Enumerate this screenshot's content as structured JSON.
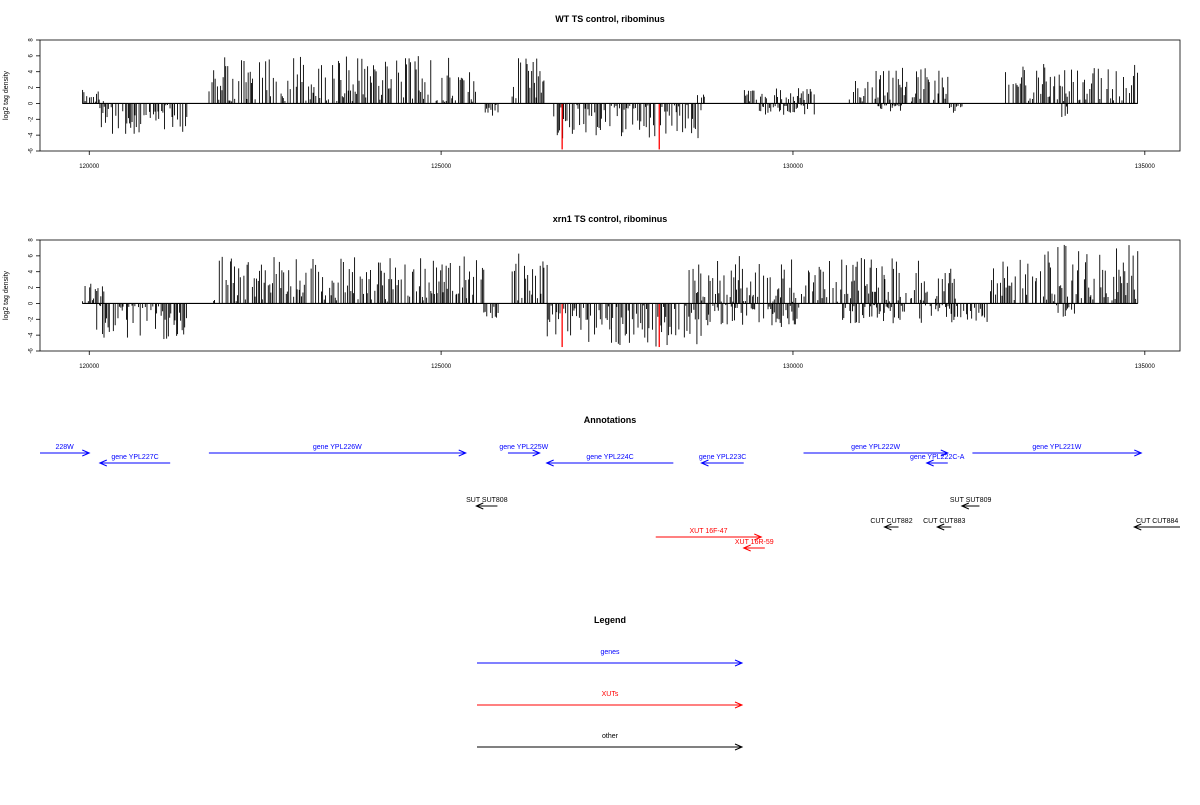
{
  "chart_data": [
    {
      "type": "bar",
      "title": "WT TS control, ribominus",
      "ylabel": "log2 tag density",
      "xlabel": "",
      "xlim": [
        119300,
        135500
      ],
      "ylim": [
        -6,
        8
      ],
      "yticks": [
        -6,
        -4,
        -2,
        0,
        2,
        4,
        6,
        8
      ],
      "xticks": [
        120000,
        125000,
        130000,
        135000
      ],
      "grid": false,
      "seed": 17,
      "positive_regions": [
        {
          "start": 119900,
          "end": 120200,
          "max": 2.2
        },
        {
          "start": 121700,
          "end": 125500,
          "max": 6.0
        },
        {
          "start": 126000,
          "end": 126500,
          "max": 5.8
        },
        {
          "start": 128600,
          "end": 128800,
          "max": 1.2
        },
        {
          "start": 129300,
          "end": 130300,
          "max": 2.0
        },
        {
          "start": 130800,
          "end": 132200,
          "max": 4.5
        },
        {
          "start": 133000,
          "end": 134900,
          "max": 5.0
        }
      ],
      "negative_regions": [
        {
          "start": 120150,
          "end": 121400,
          "max": 4.0
        },
        {
          "start": 125600,
          "end": 125800,
          "max": 2.0
        },
        {
          "start": 126600,
          "end": 128700,
          "max": 4.5
        },
        {
          "start": 129500,
          "end": 130300,
          "max": 1.5
        },
        {
          "start": 131200,
          "end": 131600,
          "max": 1.0
        },
        {
          "start": 132200,
          "end": 132400,
          "max": 1.2
        },
        {
          "start": 133800,
          "end": 133900,
          "max": 2.0
        }
      ],
      "highlight_bars": [
        {
          "x": 126720,
          "y": -5.8,
          "color": "#ff0000"
        },
        {
          "x": 128100,
          "y": -5.8,
          "color": "#ff0000"
        }
      ],
      "baseline": {
        "start": 119900,
        "end": 134900
      }
    },
    {
      "type": "bar",
      "title": "xrn1 TS control, ribominus",
      "ylabel": "log2 tag density",
      "xlabel": "",
      "xlim": [
        119300,
        135500
      ],
      "ylim": [
        -6,
        8
      ],
      "yticks": [
        -6,
        -4,
        -2,
        0,
        2,
        4,
        6,
        8
      ],
      "xticks": [
        120000,
        125000,
        130000,
        135000
      ],
      "grid": false,
      "seed": 43,
      "positive_regions": [
        {
          "start": 119900,
          "end": 120200,
          "max": 2.6
        },
        {
          "start": 121700,
          "end": 125600,
          "max": 6.0
        },
        {
          "start": 126000,
          "end": 126500,
          "max": 6.5
        },
        {
          "start": 128500,
          "end": 132300,
          "max": 6.0
        },
        {
          "start": 132800,
          "end": 134900,
          "max": 7.5
        }
      ],
      "negative_regions": [
        {
          "start": 120100,
          "end": 121400,
          "max": 5.0
        },
        {
          "start": 125600,
          "end": 125800,
          "max": 2.0
        },
        {
          "start": 126500,
          "end": 128700,
          "max": 5.5
        },
        {
          "start": 128700,
          "end": 130100,
          "max": 3.0
        },
        {
          "start": 130700,
          "end": 131600,
          "max": 2.5
        },
        {
          "start": 131800,
          "end": 132800,
          "max": 2.5
        },
        {
          "start": 133700,
          "end": 134000,
          "max": 2.0
        }
      ],
      "highlight_bars": [
        {
          "x": 126720,
          "y": -5.5,
          "color": "#ff0000"
        },
        {
          "x": 128100,
          "y": -5.5,
          "color": "#ff0000"
        }
      ],
      "baseline": {
        "start": 119900,
        "end": 134900
      }
    }
  ],
  "annotations": {
    "title": "Annotations",
    "features": [
      {
        "label": "228W",
        "start": 119300,
        "end": 120000,
        "dir": "+",
        "color": "#0000ff",
        "row": 0
      },
      {
        "label": "gene YPL227C",
        "start": 120150,
        "end": 121150,
        "dir": "-",
        "color": "#0000ff",
        "row": 1
      },
      {
        "label": "gene YPL226W",
        "start": 121700,
        "end": 125350,
        "dir": "+",
        "color": "#0000ff",
        "row": 0
      },
      {
        "label": "gene YPL225W",
        "start": 125950,
        "end": 126400,
        "dir": "+",
        "color": "#0000ff",
        "row": 0
      },
      {
        "label": "gene YPL224C",
        "start": 126500,
        "end": 128300,
        "dir": "-",
        "color": "#0000ff",
        "row": 1
      },
      {
        "label": "gene YPL223C",
        "start": 128700,
        "end": 129300,
        "dir": "-",
        "color": "#0000ff",
        "row": 1
      },
      {
        "label": "gene YPL222W",
        "start": 130150,
        "end": 132200,
        "dir": "+",
        "color": "#0000ff",
        "row": 0
      },
      {
        "label": "gene YPL222C-A",
        "start": 131900,
        "end": 132200,
        "dir": "-",
        "color": "#0000ff",
        "row": 1
      },
      {
        "label": "gene YPL221W",
        "start": 132550,
        "end": 134950,
        "dir": "+",
        "color": "#0000ff",
        "row": 0
      },
      {
        "label": "SUT SUT808",
        "start": 125500,
        "end": 125800,
        "dir": "-",
        "color": "#000000",
        "row": 4
      },
      {
        "label": "SUT SUT809",
        "start": 132400,
        "end": 132650,
        "dir": "-",
        "color": "#000000",
        "row": 4
      },
      {
        "label": "CUT CUT882",
        "start": 131300,
        "end": 131500,
        "dir": "-",
        "color": "#000000",
        "row": 5
      },
      {
        "label": "CUT CUT883",
        "start": 132050,
        "end": 132250,
        "dir": "-",
        "color": "#000000",
        "row": 5
      },
      {
        "label": "CUT CUT884",
        "start": 134850,
        "end": 135500,
        "dir": "-",
        "color": "#000000",
        "row": 5
      },
      {
        "label": "XUT 16F-47",
        "start": 128050,
        "end": 129550,
        "dir": "+",
        "color": "#ff0000",
        "row": 6
      },
      {
        "label": "XUT 16R-59",
        "start": 129300,
        "end": 129600,
        "dir": "-",
        "color": "#ff0000",
        "row": 7
      }
    ]
  },
  "legend": {
    "title": "Legend",
    "items": [
      {
        "label": "genes",
        "color": "#0000ff"
      },
      {
        "label": "XUTs",
        "color": "#ff0000"
      },
      {
        "label": "other",
        "color": "#000000"
      }
    ]
  }
}
